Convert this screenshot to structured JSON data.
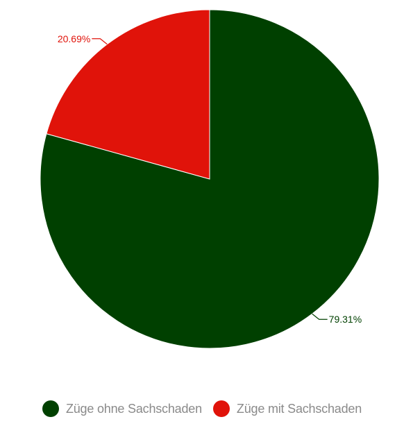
{
  "chart_data": {
    "type": "pie",
    "slices": [
      {
        "name": "Züge ohne Sachschaden",
        "value": 79.31,
        "label": "79.31%",
        "color": "#004000"
      },
      {
        "name": "Züge mit Sachschaden",
        "value": 20.69,
        "label": "20.69%",
        "color": "#e0130a"
      }
    ],
    "legend_position": "bottom"
  },
  "legend": {
    "items": [
      {
        "label": "Züge ohne Sachschaden",
        "color": "#004000"
      },
      {
        "label": "Züge mit Sachschaden",
        "color": "#e0130a"
      }
    ]
  }
}
